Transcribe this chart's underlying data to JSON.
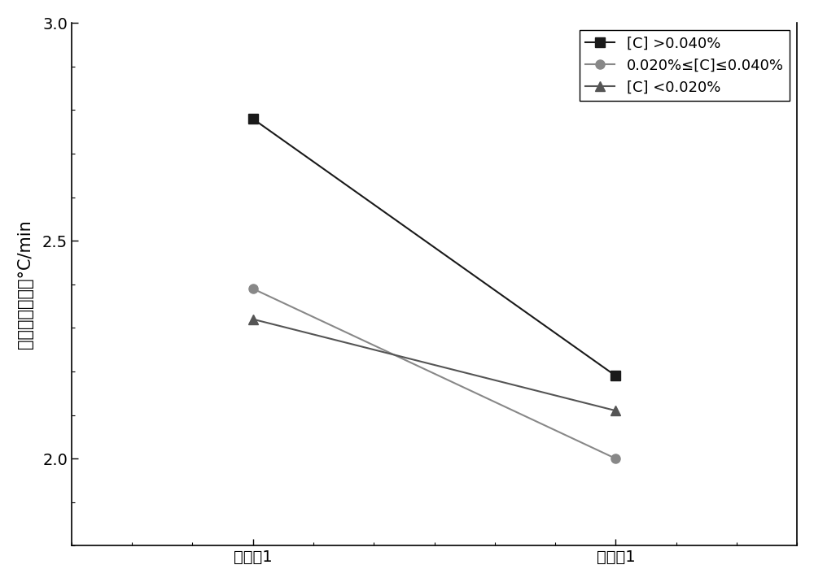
{
  "x_labels": [
    "对比例1",
    "实施例1"
  ],
  "series": [
    {
      "label": "[C] >0.040%",
      "values": [
        2.78,
        2.19
      ],
      "color": "#1a1a1a",
      "marker": "s",
      "markersize": 8,
      "linestyle": "-",
      "linewidth": 1.5
    },
    {
      "label": "0.020%≤[C]≤0.040%",
      "values": [
        2.39,
        2.0
      ],
      "color": "#888888",
      "marker": "o",
      "markersize": 8,
      "linestyle": "-",
      "linewidth": 1.5
    },
    {
      "label": "[C] <0.020%",
      "values": [
        2.32,
        2.11
      ],
      "color": "#555555",
      "marker": "^",
      "markersize": 8,
      "linestyle": "-",
      "linewidth": 1.5
    }
  ],
  "ylabel": "脱碳期温降速率°C/min",
  "ylim": [
    1.8,
    3.0
  ],
  "yticks_major": [
    2.0,
    2.5,
    3.0
  ],
  "ytick_minor_interval": 0.1,
  "legend_fontsize": 13,
  "ylabel_fontsize": 15,
  "tick_fontsize": 14,
  "background_color": "#ffffff"
}
